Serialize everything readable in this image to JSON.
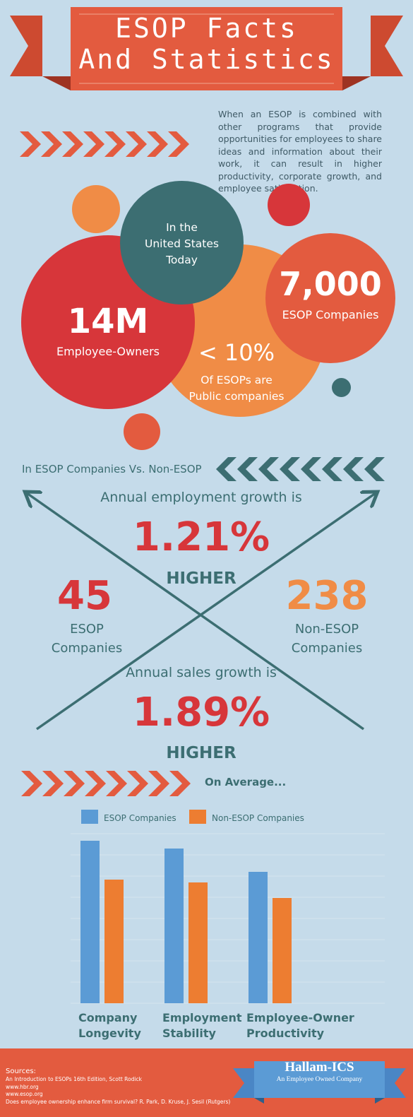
{
  "header": {
    "title_line1": "ESOP Facts",
    "title_line2": "And Statistics"
  },
  "intro_text": "When an ESOP is combined with other programs that provide opportunities for employees to share ideas and information about their work, it can result in higher productivity, corporate growth, and employee satisfaction.",
  "circles": {
    "teal_line1": "In the",
    "teal_line2": "United States",
    "teal_line3": "Today",
    "employees_value": "14M",
    "employees_label": "Employee-Owners",
    "companies_value": "7,000",
    "companies_label": "ESOP Companies",
    "public_value": "< 10%",
    "public_line1": "Of ESOPs are",
    "public_line2": "Public companies"
  },
  "comparison": {
    "heading": "In ESOP Companies Vs. Non-ESOP",
    "employment_intro": "Annual employment growth is",
    "employment_value": "1.21%",
    "employment_higher": "HIGHER",
    "esop_count": "45",
    "esop_label1": "ESOP",
    "esop_label2": "Companies",
    "non_esop_count": "238",
    "non_esop_label1": "Non-ESOP",
    "non_esop_label2": "Companies",
    "sales_intro": "Annual sales growth is",
    "sales_value": "1.89%",
    "sales_higher": "HIGHER"
  },
  "average": {
    "heading": "On Average..."
  },
  "chart_data": {
    "type": "bar",
    "categories": [
      "Company Longevity",
      "Employment Stability",
      "Employee-Owner Productivity"
    ],
    "category_lines": [
      [
        "Company",
        "Longevity"
      ],
      [
        "Employment",
        "Stability"
      ],
      [
        "Employee-Owner",
        "Productivity"
      ]
    ],
    "series": [
      {
        "name": "ESOP Companies",
        "values": [
          230,
          219,
          186
        ],
        "color": "#5b9bd5"
      },
      {
        "name": "Non-ESOP Companies",
        "values": [
          175,
          171,
          149
        ],
        "color": "#ed7d31"
      }
    ],
    "ylim": [
      0,
      240
    ],
    "grid": true,
    "legend": "top"
  },
  "footer": {
    "sources_title": "Sources:",
    "sources": [
      "An Introduction to ESOPs 16th Edition, Scott Rodick",
      "www.hbr.org",
      "www.esop.org",
      "Does employee ownership enhance firm survival? R. Park, D. Kruse, J. Sesil (Rutgers)"
    ],
    "logo_name": "Hallam-ICS",
    "logo_tagline": "An Employee Owned Company"
  },
  "colors": {
    "background": "#c5dbea",
    "red": "#d7363a",
    "coral": "#e35b3f",
    "orange": "#f08c46",
    "teal": "#3c6e72",
    "footer": "#e35b3f"
  }
}
